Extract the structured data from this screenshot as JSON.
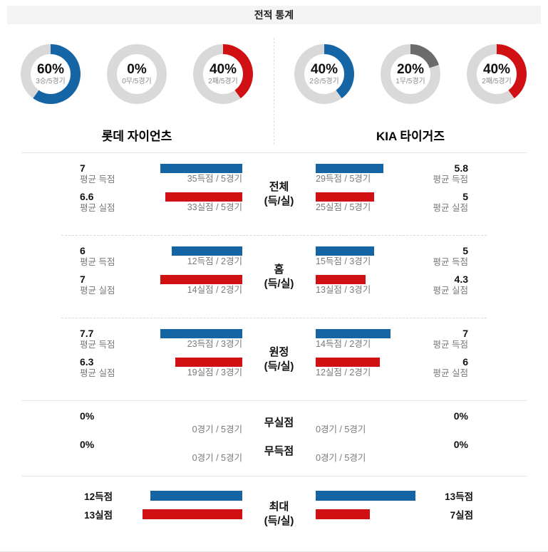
{
  "header": {
    "title": "전적 통계"
  },
  "colors": {
    "bar_blue": "#1565a4",
    "bar_red": "#d01013",
    "donut_track": "#d9d9d9",
    "donut_draw": "#6b6b6b"
  },
  "teams": {
    "home": {
      "name": "롯데 자이언츠"
    },
    "away": {
      "name": "KIA 타이거즈"
    }
  },
  "donuts": {
    "home": [
      {
        "percent": 60,
        "pct_label": "60%",
        "sub_label": "3승/5경기",
        "color": "#1565a4"
      },
      {
        "percent": 0,
        "pct_label": "0%",
        "sub_label": "0무/5경기",
        "color": "#6b6b6b"
      },
      {
        "percent": 40,
        "pct_label": "40%",
        "sub_label": "2패/5경기",
        "color": "#d01013"
      }
    ],
    "away": [
      {
        "percent": 40,
        "pct_label": "40%",
        "sub_label": "2승/5경기",
        "color": "#1565a4"
      },
      {
        "percent": 20,
        "pct_label": "20%",
        "sub_label": "1무/5경기",
        "color": "#6b6b6b"
      },
      {
        "percent": 40,
        "pct_label": "40%",
        "sub_label": "2패/5경기",
        "color": "#d01013"
      }
    ]
  },
  "sections": {
    "total": {
      "title": "전체",
      "subtitle": "(득/실)",
      "scored": {
        "home": {
          "value": "7",
          "label": "평균 득점",
          "sub": "35득점 / 5경기",
          "bar_pct": 100
        },
        "away": {
          "value": "5.8",
          "label": "평균 득점",
          "sub": "29득점 / 5경기",
          "bar_pct": 83
        }
      },
      "conceded": {
        "home": {
          "value": "6.6",
          "label": "평균 실점",
          "sub": "33실점 / 5경기",
          "bar_pct": 94
        },
        "away": {
          "value": "5",
          "label": "평균 실점",
          "sub": "25실점 / 5경기",
          "bar_pct": 71
        }
      }
    },
    "home": {
      "title": "홈",
      "subtitle": "(득/실)",
      "scored": {
        "home": {
          "value": "6",
          "label": "평균 득점",
          "sub": "12득점 / 2경기",
          "bar_pct": 86
        },
        "away": {
          "value": "5",
          "label": "평균 득점",
          "sub": "15득점 / 3경기",
          "bar_pct": 71
        }
      },
      "conceded": {
        "home": {
          "value": "7",
          "label": "평균 실점",
          "sub": "14실점 / 2경기",
          "bar_pct": 100
        },
        "away": {
          "value": "4.3",
          "label": "평균 실점",
          "sub": "13실점 / 3경기",
          "bar_pct": 61
        }
      }
    },
    "road": {
      "title": "원정",
      "subtitle": "(득/실)",
      "scored": {
        "home": {
          "value": "7.7",
          "label": "평균 득점",
          "sub": "23득점 / 3경기",
          "bar_pct": 100
        },
        "away": {
          "value": "7",
          "label": "평균 득점",
          "sub": "14득점 / 2경기",
          "bar_pct": 91
        }
      },
      "conceded": {
        "home": {
          "value": "6.3",
          "label": "평균 실점",
          "sub": "19실점 / 3경기",
          "bar_pct": 82
        },
        "away": {
          "value": "6",
          "label": "평균 실점",
          "sub": "12실점 / 2경기",
          "bar_pct": 78
        }
      }
    },
    "zero": {
      "rows": [
        {
          "title": "무실점",
          "home_pct": "0%",
          "home_sub": "0경기 / 5경기",
          "away_sub": "0경기 / 5경기",
          "away_pct": "0%"
        },
        {
          "title": "무득점",
          "home_pct": "0%",
          "home_sub": "0경기 / 5경기",
          "away_sub": "0경기 / 5경기",
          "away_pct": "0%"
        }
      ]
    },
    "max": {
      "title": "최대",
      "subtitle": "(득/실)",
      "scored": {
        "home_label": "12득점",
        "home_bar_pct": 92,
        "away_bar_pct": 100,
        "away_label": "13득점"
      },
      "conceded": {
        "home_label": "13실점",
        "home_bar_pct": 100,
        "away_bar_pct": 54,
        "away_label": "7실점"
      }
    }
  },
  "chart_data": [
    {
      "type": "pie",
      "team": "롯데 자이언츠",
      "metric": "승",
      "percent": 60,
      "detail": "3승/5경기"
    },
    {
      "type": "pie",
      "team": "롯데 자이언츠",
      "metric": "무",
      "percent": 0,
      "detail": "0무/5경기"
    },
    {
      "type": "pie",
      "team": "롯데 자이언츠",
      "metric": "패",
      "percent": 40,
      "detail": "2패/5경기"
    },
    {
      "type": "pie",
      "team": "KIA 타이거즈",
      "metric": "승",
      "percent": 40,
      "detail": "2승/5경기"
    },
    {
      "type": "pie",
      "team": "KIA 타이거즈",
      "metric": "무",
      "percent": 20,
      "detail": "1무/5경기"
    },
    {
      "type": "pie",
      "team": "KIA 타이거즈",
      "metric": "패",
      "percent": 40,
      "detail": "2패/5경기"
    },
    {
      "type": "bar",
      "title": "전체 (득/실)",
      "categories": [
        "평균 득점",
        "평균 실점"
      ],
      "series": [
        {
          "name": "롯데 자이언츠",
          "values": [
            7,
            6.6
          ],
          "details": [
            "35득점 / 5경기",
            "33실점 / 5경기"
          ]
        },
        {
          "name": "KIA 타이거즈",
          "values": [
            5.8,
            5
          ],
          "details": [
            "29득점 / 5경기",
            "25실점 / 5경기"
          ]
        }
      ]
    },
    {
      "type": "bar",
      "title": "홈 (득/실)",
      "categories": [
        "평균 득점",
        "평균 실점"
      ],
      "series": [
        {
          "name": "롯데 자이언츠",
          "values": [
            6,
            7
          ],
          "details": [
            "12득점 / 2경기",
            "14실점 / 2경기"
          ]
        },
        {
          "name": "KIA 타이거즈",
          "values": [
            5,
            4.3
          ],
          "details": [
            "15득점 / 3경기",
            "13실점 / 3경기"
          ]
        }
      ]
    },
    {
      "type": "bar",
      "title": "원정 (득/실)",
      "categories": [
        "평균 득점",
        "평균 실점"
      ],
      "series": [
        {
          "name": "롯데 자이언츠",
          "values": [
            7.7,
            6.3
          ],
          "details": [
            "23득점 / 3경기",
            "19실점 / 3경기"
          ]
        },
        {
          "name": "KIA 타이거즈",
          "values": [
            7,
            6
          ],
          "details": [
            "14득점 / 2경기",
            "12실점 / 2경기"
          ]
        }
      ]
    },
    {
      "type": "bar",
      "title": "무실점 / 무득점",
      "categories": [
        "무실점",
        "무득점"
      ],
      "series": [
        {
          "name": "롯데 자이언츠",
          "values": [
            0,
            0
          ],
          "details": [
            "0경기 / 5경기",
            "0경기 / 5경기"
          ]
        },
        {
          "name": "KIA 타이거즈",
          "values": [
            0,
            0
          ],
          "details": [
            "0경기 / 5경기",
            "0경기 / 5경기"
          ]
        }
      ]
    },
    {
      "type": "bar",
      "title": "최대 (득/실)",
      "categories": [
        "최대 득점",
        "최대 실점"
      ],
      "series": [
        {
          "name": "롯데 자이언츠",
          "values": [
            12,
            13
          ],
          "details": [
            "12득점",
            "13실점"
          ]
        },
        {
          "name": "KIA 타이거즈",
          "values": [
            13,
            7
          ],
          "details": [
            "13득점",
            "7실점"
          ]
        }
      ]
    }
  ]
}
